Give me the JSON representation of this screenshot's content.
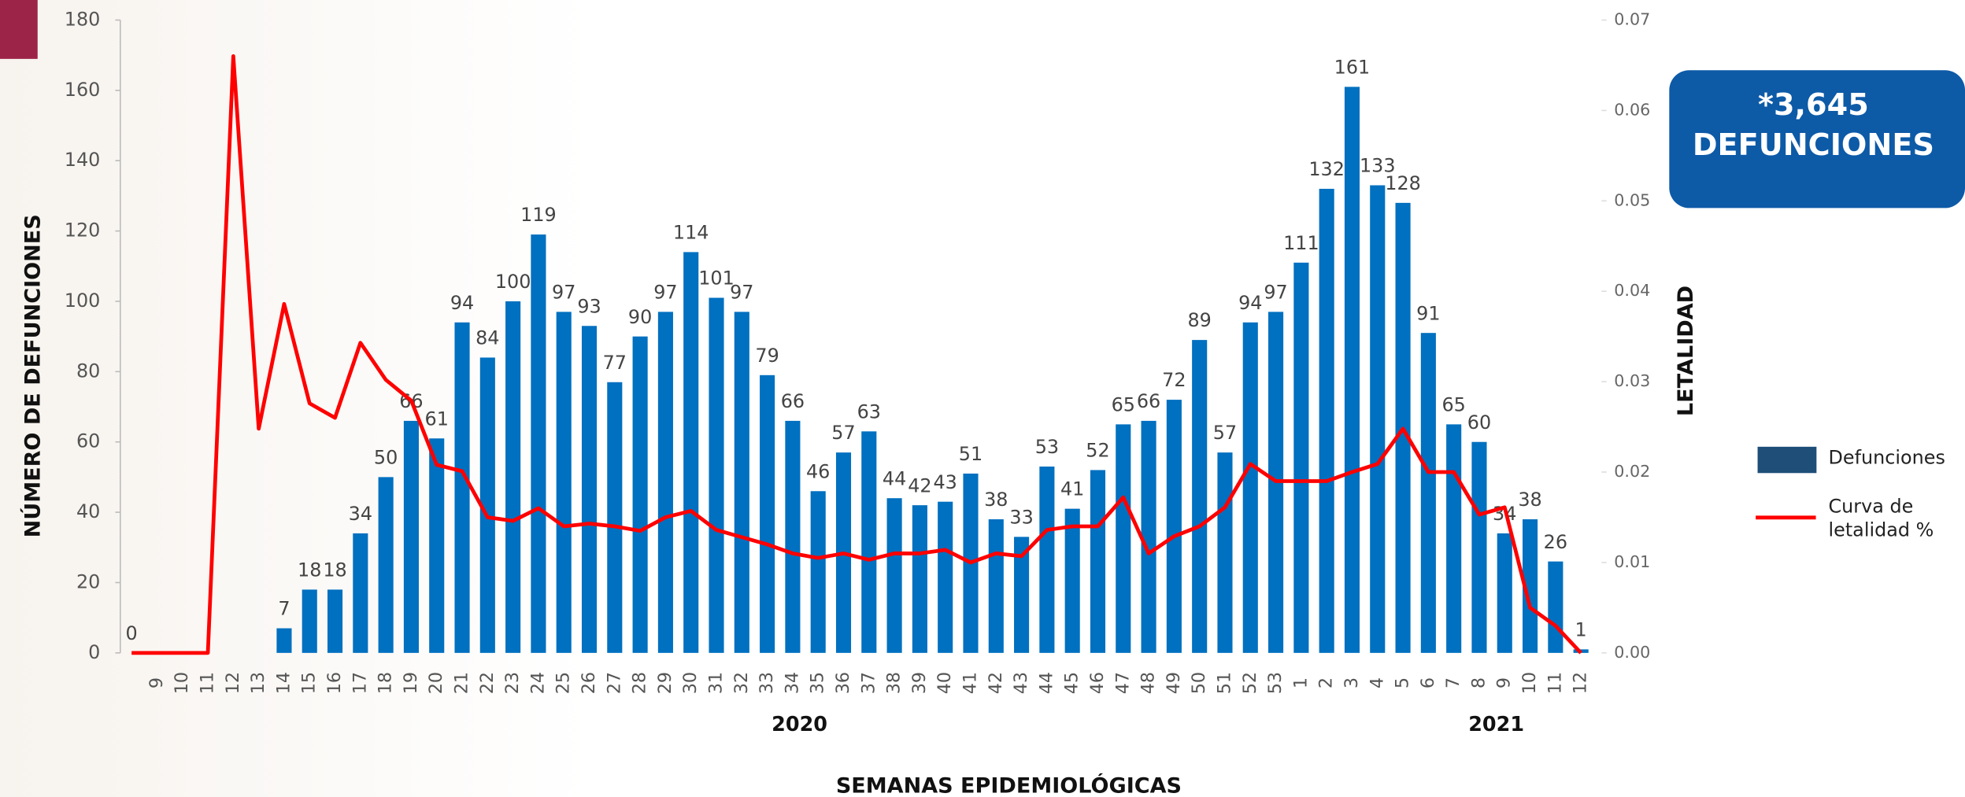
{
  "chart_data": {
    "type": "bar",
    "y_label": "NÚMERO DE DEFUNCIONES",
    "y2_label": "LETALIDAD",
    "x_label": "SEMANAS EPIDEMIOLÓGICAS",
    "annotations": [
      "2020",
      "2021"
    ],
    "callout": [
      "*3,645",
      "DEFUNCIONES"
    ],
    "categories": [
      null,
      "9",
      "10",
      "11",
      "12",
      "13",
      "14",
      "15",
      "16",
      "17",
      "18",
      "19",
      "20",
      "21",
      "22",
      "23",
      "24",
      "25",
      "26",
      "27",
      "28",
      "29",
      "30",
      "31",
      "32",
      "33",
      "34",
      "35",
      "36",
      "37",
      "38",
      "39",
      "40",
      "41",
      "42",
      "43",
      "44",
      "45",
      "46",
      "47",
      "48",
      "49",
      "50",
      "51",
      "52",
      "53",
      "1",
      "2",
      "3",
      "4",
      "5",
      "6",
      "7",
      "8",
      "9",
      "10",
      "11",
      "12"
    ],
    "series": [
      {
        "name": "Defunciones",
        "type": "bar",
        "color": "#0070c0",
        "swatch": "#1f4e79",
        "values": [
          0,
          null,
          null,
          null,
          null,
          null,
          7,
          18,
          18,
          34,
          50,
          66,
          61,
          94,
          84,
          100,
          119,
          97,
          93,
          77,
          90,
          97,
          114,
          101,
          97,
          79,
          66,
          46,
          57,
          63,
          44,
          42,
          43,
          51,
          38,
          33,
          53,
          41,
          52,
          65,
          66,
          72,
          89,
          57,
          94,
          97,
          111,
          132,
          161,
          133,
          128,
          91,
          65,
          60,
          34,
          38,
          26,
          1
        ]
      },
      {
        "name": "Curva de letalidad %",
        "type": "line",
        "axis": "y2",
        "color": "#ff0000",
        "values": [
          0,
          0,
          0,
          0,
          0.066,
          0.0248,
          0.0386,
          0.0276,
          0.026,
          0.0343,
          0.0302,
          0.0279,
          0.0208,
          0.0201,
          0.015,
          0.0146,
          0.016,
          0.014,
          0.0143,
          0.014,
          0.0135,
          0.015,
          0.0157,
          0.0136,
          0.0128,
          0.012,
          0.011,
          0.0105,
          0.011,
          0.0103,
          0.011,
          0.011,
          0.0114,
          0.01,
          0.011,
          0.0107,
          0.0136,
          0.014,
          0.014,
          0.0172,
          0.011,
          0.0129,
          0.014,
          0.0161,
          0.0209,
          0.019,
          0.019,
          0.019,
          0.02,
          0.0209,
          0.0248,
          0.02,
          0.02,
          0.0153,
          0.0161,
          0.005,
          0.003,
          0
        ]
      }
    ],
    "ylim": [
      0,
      180
    ],
    "yticks": [
      0,
      20,
      40,
      60,
      80,
      100,
      120,
      140,
      160,
      180
    ],
    "y2lim": [
      0,
      0.07
    ],
    "y2ticks": [
      {
        "value": 0,
        "label": "0.00"
      },
      0.01,
      0.02,
      0.03,
      0.04,
      0.05,
      0.06,
      0.07
    ]
  }
}
